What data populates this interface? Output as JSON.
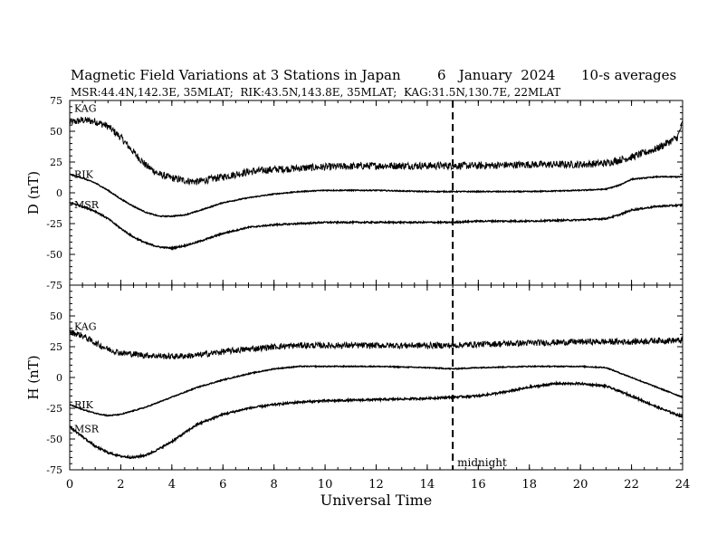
{
  "header": {
    "title": "Magnetic Field Variations at 3 Stations in Japan",
    "date": "6   January  2024",
    "averaging": "10-s averages",
    "stations_line": "MSR:44.4N,142.3E, 35MLAT;  RIK:43.5N,143.8E, 35MLAT;  KAG:31.5N,130.7E, 22MLAT"
  },
  "chart_data": [
    {
      "type": "line",
      "panel": "top",
      "ylabel": "D (nT)",
      "xlabel": "",
      "xlim": [
        0,
        24
      ],
      "ylim": [
        -75,
        75
      ],
      "yticks": [
        75,
        50,
        25,
        0,
        -25,
        -50,
        -75
      ],
      "xticks": [
        0,
        2,
        4,
        6,
        8,
        10,
        12,
        14,
        16,
        18,
        20,
        22,
        24
      ],
      "series": [
        {
          "name": "KAG",
          "noise": 3,
          "x": [
            0,
            0.5,
            1,
            1.5,
            2,
            2.5,
            3,
            3.5,
            4,
            4.5,
            5,
            6,
            7,
            8,
            9,
            10,
            12,
            14,
            15,
            16,
            18,
            20,
            21,
            22,
            23,
            23.8,
            24
          ],
          "y": [
            57,
            59,
            58,
            54,
            45,
            33,
            22,
            15,
            12,
            10,
            9,
            13,
            17,
            19,
            20,
            21,
            22,
            22,
            22,
            22,
            23,
            23,
            24,
            29,
            36,
            45,
            57
          ]
        },
        {
          "name": "RIK",
          "noise": 0.4,
          "x": [
            0,
            0.5,
            1,
            1.5,
            2,
            2.5,
            3,
            3.5,
            4,
            4.5,
            5,
            6,
            7,
            8,
            9,
            10,
            12,
            14,
            15,
            16,
            18,
            20,
            21,
            21.5,
            22,
            23,
            24
          ],
          "y": [
            15,
            12,
            8,
            2,
            -5,
            -11,
            -16,
            -19,
            -19,
            -18,
            -15,
            -8,
            -4,
            -1,
            1,
            2,
            2,
            1,
            1,
            1,
            1,
            2,
            3,
            6,
            11,
            13,
            13
          ]
        },
        {
          "name": "MSR",
          "noise": 0.6,
          "x": [
            0,
            0.5,
            1,
            1.5,
            2,
            2.5,
            3,
            3.5,
            4,
            4.5,
            5,
            6,
            7,
            8,
            9,
            10,
            12,
            14,
            15,
            16,
            18,
            20,
            21,
            21.5,
            22,
            23,
            24
          ],
          "y": [
            -8,
            -11,
            -15,
            -21,
            -29,
            -36,
            -41,
            -44,
            -45,
            -43,
            -40,
            -33,
            -28,
            -26,
            -25,
            -24,
            -24,
            -24,
            -24,
            -23,
            -23,
            -22,
            -21,
            -18,
            -14,
            -11,
            -10
          ]
        }
      ]
    },
    {
      "type": "line",
      "panel": "bottom",
      "ylabel": "H (nT)",
      "xlabel": "Universal Time",
      "xlim": [
        0,
        24
      ],
      "ylim": [
        -75,
        75
      ],
      "yticks": [
        50,
        25,
        0,
        -25,
        -50,
        -75
      ],
      "xticks": [
        0,
        2,
        4,
        6,
        8,
        10,
        12,
        14,
        16,
        18,
        20,
        22,
        24
      ],
      "series": [
        {
          "name": "KAG",
          "noise": 2.5,
          "x": [
            0,
            0.5,
            1,
            1.5,
            2,
            3,
            4,
            5,
            6,
            7,
            8,
            9,
            10,
            12,
            14,
            15,
            16,
            18,
            20,
            21,
            22,
            23,
            23.8,
            24
          ],
          "y": [
            37,
            34,
            28,
            23,
            20,
            18,
            17,
            18,
            21,
            23,
            25,
            26,
            26,
            26,
            26,
            26,
            27,
            28,
            29,
            29,
            29,
            30,
            30,
            30
          ]
        },
        {
          "name": "RIK",
          "noise": 0.4,
          "x": [
            0,
            0.5,
            1,
            1.5,
            2,
            3,
            4,
            5,
            6,
            7,
            8,
            9,
            10,
            12,
            14,
            15,
            16,
            18,
            20,
            21,
            22,
            23,
            24
          ],
          "y": [
            -22,
            -26,
            -29,
            -31,
            -30,
            -24,
            -16,
            -8,
            -2,
            3,
            7,
            9,
            9,
            9,
            8,
            7,
            8,
            9,
            9,
            8,
            0,
            -8,
            -16
          ]
        },
        {
          "name": "MSR",
          "noise": 0.8,
          "x": [
            0,
            0.5,
            1,
            1.5,
            2,
            2.5,
            3,
            3.5,
            4,
            4.5,
            5,
            6,
            7,
            8,
            9,
            10,
            12,
            14,
            15,
            16,
            17,
            18,
            19,
            20,
            21,
            22,
            23,
            24
          ],
          "y": [
            -40,
            -48,
            -56,
            -61,
            -64,
            -65,
            -63,
            -58,
            -52,
            -45,
            -38,
            -30,
            -25,
            -22,
            -20,
            -19,
            -18,
            -17,
            -16,
            -15,
            -12,
            -8,
            -5,
            -5,
            -7,
            -15,
            -24,
            -32
          ]
        }
      ]
    }
  ],
  "annotations": {
    "midnight_label": "midnight",
    "midnight_ut": 15
  }
}
